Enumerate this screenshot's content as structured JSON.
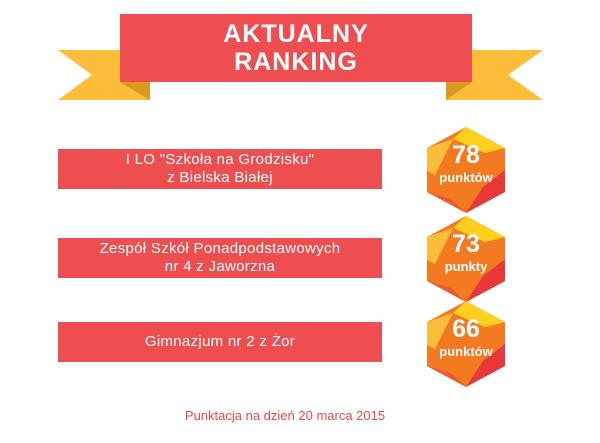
{
  "banner": {
    "line1": "AKTUALNY",
    "line2": "RANKING"
  },
  "ranking": [
    {
      "name_line1": "I LO \"Szkoła na Grodzisku\"",
      "name_line2": "z Bielska Białej",
      "score": "78",
      "unit": "punktów"
    },
    {
      "name_line1": "Zespół Szkół Ponadpodstawowych",
      "name_line2": "nr 4 z Jaworzna",
      "score": "73",
      "unit": "punkty"
    },
    {
      "name_line1": "Gimnazjum nr 2 z Żor",
      "name_line2": "",
      "score": "66",
      "unit": "punktów"
    }
  ],
  "footer": "Punktacja na dzień 20 marca 2015",
  "colors": {
    "accent_red": "#ee4e50",
    "ribbon_yellow": "#fbbd3a",
    "hex_orange": "#f47a22",
    "hex_yellow": "#fcd01c",
    "hex_red": "#e8383a"
  }
}
